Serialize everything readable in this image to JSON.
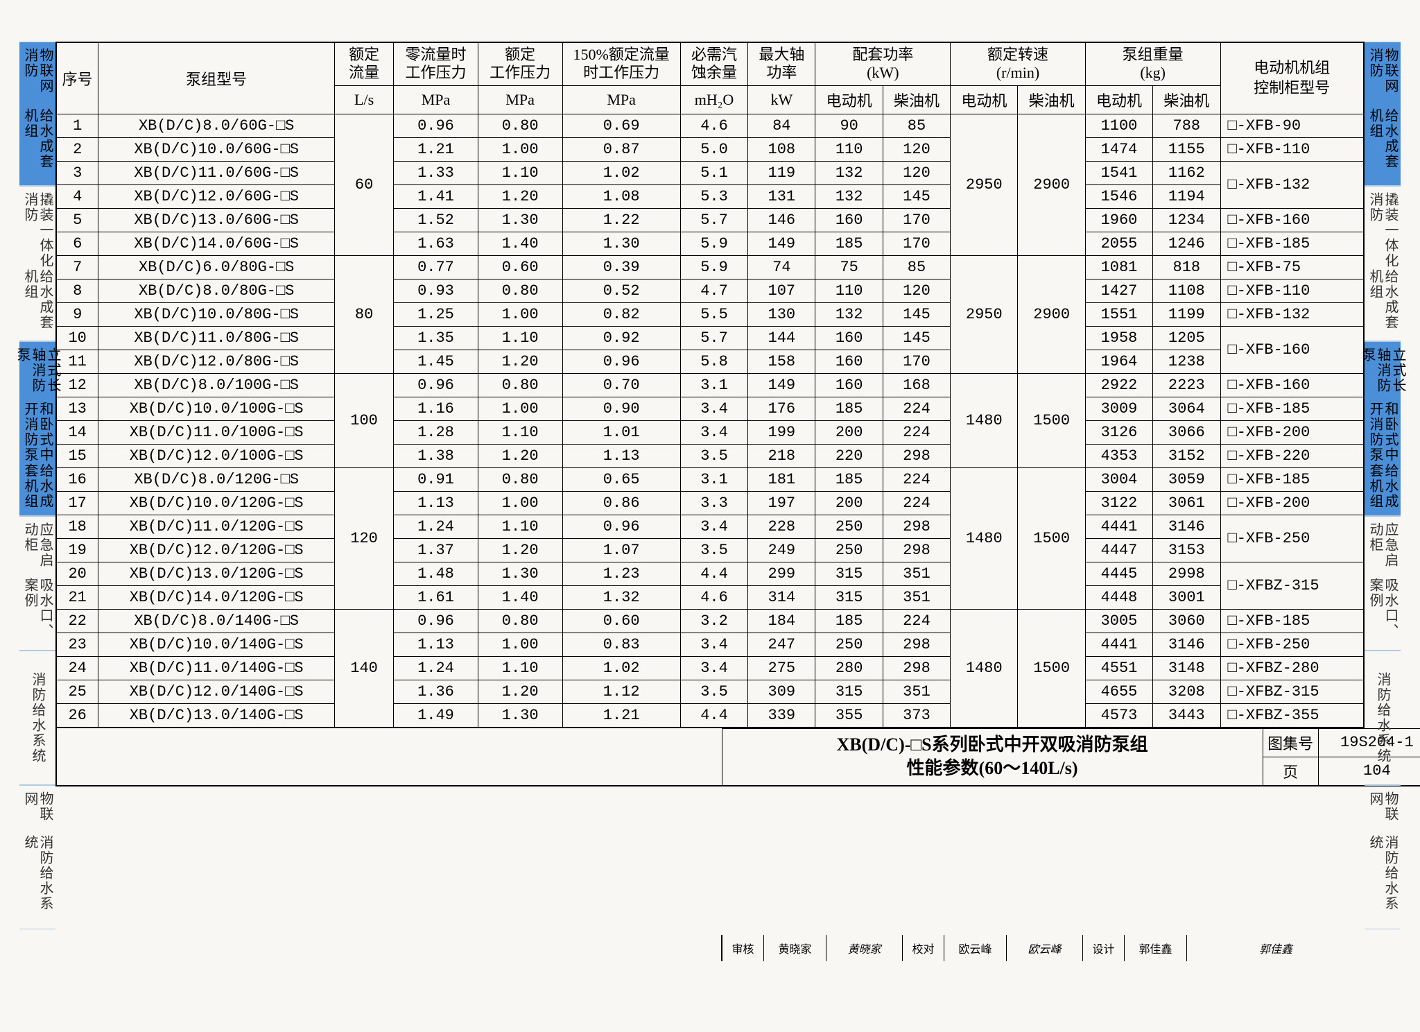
{
  "tabs": {
    "left": [
      {
        "text": "物联网消防\n给水成套机组",
        "blue": true,
        "flex": 1.3
      },
      {
        "text": "撬装一体化消防\n给水成套机组",
        "blue": false,
        "flex": 1.4
      },
      {
        "text": "立式长轴消防泵\n和卧式中开消防泵\n给水成套机组",
        "blue": true,
        "flex": 1.6
      },
      {
        "text": "应急启动柜\n吸水口、案例",
        "blue": false,
        "flex": 1.2
      },
      {
        "text": "消防给水系统",
        "blue": false,
        "flex": 1.2
      },
      {
        "text": "物联网\n消防给水系统",
        "blue": false,
        "flex": 1.3
      }
    ]
  },
  "header": {
    "seq": "序号",
    "model": "泵组型号",
    "flow1": "额定\n流量",
    "flow2": "L/s",
    "p0_1": "零流量时\n工作压力",
    "p0_2": "MPa",
    "pr_1": "额定\n工作压力",
    "pr_2": "MPa",
    "p150_1": "150%额定流量\n时工作压力",
    "p150_2": "MPa",
    "npsh_1": "必需汽\n蚀余量",
    "npsh_2": "mH₂O",
    "maxp_1": "最大轴\n功率",
    "maxp_2": "kW",
    "kw": "配套功率\n(kW)",
    "rpm": "额定转速\n(r/min)",
    "wt": "泵组重量\n(kg)",
    "cab": "电动机机组\n控制柜型号",
    "elec": "电动机",
    "diesel": "柴油机"
  },
  "rows": [
    {
      "n": 1,
      "model": "XB(D/C)8.0/60G-□S",
      "p0": "0.96",
      "pr": "0.80",
      "p150": "0.69",
      "npsh": "4.6",
      "maxp": "84",
      "kwE": "90",
      "kwD": "85",
      "wE": "1100",
      "wD": "788",
      "cab": "□-XFB-90"
    },
    {
      "n": 2,
      "model": "XB(D/C)10.0/60G-□S",
      "p0": "1.21",
      "pr": "1.00",
      "p150": "0.87",
      "npsh": "5.0",
      "maxp": "108",
      "kwE": "110",
      "kwD": "120",
      "wE": "1474",
      "wD": "1155",
      "cab": "□-XFB-110"
    },
    {
      "n": 3,
      "model": "XB(D/C)11.0/60G-□S",
      "p0": "1.33",
      "pr": "1.10",
      "p150": "1.02",
      "npsh": "5.1",
      "maxp": "119",
      "kwE": "132",
      "kwD": "120",
      "wE": "1541",
      "wD": "1162",
      "cab": "□-XFB-132"
    },
    {
      "n": 4,
      "model": "XB(D/C)12.0/60G-□S",
      "p0": "1.41",
      "pr": "1.20",
      "p150": "1.08",
      "npsh": "5.3",
      "maxp": "131",
      "kwE": "132",
      "kwD": "145",
      "wE": "1546",
      "wD": "1194",
      "cab": ""
    },
    {
      "n": 5,
      "model": "XB(D/C)13.0/60G-□S",
      "p0": "1.52",
      "pr": "1.30",
      "p150": "1.22",
      "npsh": "5.7",
      "maxp": "146",
      "kwE": "160",
      "kwD": "170",
      "wE": "1960",
      "wD": "1234",
      "cab": "□-XFB-160"
    },
    {
      "n": 6,
      "model": "XB(D/C)14.0/60G-□S",
      "p0": "1.63",
      "pr": "1.40",
      "p150": "1.30",
      "npsh": "5.9",
      "maxp": "149",
      "kwE": "185",
      "kwD": "170",
      "wE": "2055",
      "wD": "1246",
      "cab": "□-XFB-185"
    },
    {
      "n": 7,
      "model": "XB(D/C)6.0/80G-□S",
      "p0": "0.77",
      "pr": "0.60",
      "p150": "0.39",
      "npsh": "5.9",
      "maxp": "74",
      "kwE": "75",
      "kwD": "85",
      "wE": "1081",
      "wD": "818",
      "cab": "□-XFB-75"
    },
    {
      "n": 8,
      "model": "XB(D/C)8.0/80G-□S",
      "p0": "0.93",
      "pr": "0.80",
      "p150": "0.52",
      "npsh": "4.7",
      "maxp": "107",
      "kwE": "110",
      "kwD": "120",
      "wE": "1427",
      "wD": "1108",
      "cab": "□-XFB-110"
    },
    {
      "n": 9,
      "model": "XB(D/C)10.0/80G-□S",
      "p0": "1.25",
      "pr": "1.00",
      "p150": "0.82",
      "npsh": "5.5",
      "maxp": "130",
      "kwE": "132",
      "kwD": "145",
      "wE": "1551",
      "wD": "1199",
      "cab": "□-XFB-132"
    },
    {
      "n": 10,
      "model": "XB(D/C)11.0/80G-□S",
      "p0": "1.35",
      "pr": "1.10",
      "p150": "0.92",
      "npsh": "5.7",
      "maxp": "144",
      "kwE": "160",
      "kwD": "145",
      "wE": "1958",
      "wD": "1205",
      "cab": "□-XFB-160"
    },
    {
      "n": 11,
      "model": "XB(D/C)12.0/80G-□S",
      "p0": "1.45",
      "pr": "1.20",
      "p150": "0.96",
      "npsh": "5.8",
      "maxp": "158",
      "kwE": "160",
      "kwD": "170",
      "wE": "1964",
      "wD": "1238",
      "cab": ""
    },
    {
      "n": 12,
      "model": "XB(D/C)8.0/100G-□S",
      "p0": "0.96",
      "pr": "0.80",
      "p150": "0.70",
      "npsh": "3.1",
      "maxp": "149",
      "kwE": "160",
      "kwD": "168",
      "wE": "2922",
      "wD": "2223",
      "cab": "□-XFB-160"
    },
    {
      "n": 13,
      "model": "XB(D/C)10.0/100G-□S",
      "p0": "1.16",
      "pr": "1.00",
      "p150": "0.90",
      "npsh": "3.4",
      "maxp": "176",
      "kwE": "185",
      "kwD": "224",
      "wE": "3009",
      "wD": "3064",
      "cab": "□-XFB-185"
    },
    {
      "n": 14,
      "model": "XB(D/C)11.0/100G-□S",
      "p0": "1.28",
      "pr": "1.10",
      "p150": "1.01",
      "npsh": "3.4",
      "maxp": "199",
      "kwE": "200",
      "kwD": "224",
      "wE": "3126",
      "wD": "3066",
      "cab": "□-XFB-200"
    },
    {
      "n": 15,
      "model": "XB(D/C)12.0/100G-□S",
      "p0": "1.38",
      "pr": "1.20",
      "p150": "1.13",
      "npsh": "3.5",
      "maxp": "218",
      "kwE": "220",
      "kwD": "298",
      "wE": "4353",
      "wD": "3152",
      "cab": "□-XFB-220"
    },
    {
      "n": 16,
      "model": "XB(D/C)8.0/120G-□S",
      "p0": "0.91",
      "pr": "0.80",
      "p150": "0.65",
      "npsh": "3.1",
      "maxp": "181",
      "kwE": "185",
      "kwD": "224",
      "wE": "3004",
      "wD": "3059",
      "cab": "□-XFB-185"
    },
    {
      "n": 17,
      "model": "XB(D/C)10.0/120G-□S",
      "p0": "1.13",
      "pr": "1.00",
      "p150": "0.86",
      "npsh": "3.3",
      "maxp": "197",
      "kwE": "200",
      "kwD": "224",
      "wE": "3122",
      "wD": "3061",
      "cab": "□-XFB-200"
    },
    {
      "n": 18,
      "model": "XB(D/C)11.0/120G-□S",
      "p0": "1.24",
      "pr": "1.10",
      "p150": "0.96",
      "npsh": "3.4",
      "maxp": "228",
      "kwE": "250",
      "kwD": "298",
      "wE": "4441",
      "wD": "3146",
      "cab": "□-XFB-250"
    },
    {
      "n": 19,
      "model": "XB(D/C)12.0/120G-□S",
      "p0": "1.37",
      "pr": "1.20",
      "p150": "1.07",
      "npsh": "3.5",
      "maxp": "249",
      "kwE": "250",
      "kwD": "298",
      "wE": "4447",
      "wD": "3153",
      "cab": ""
    },
    {
      "n": 20,
      "model": "XB(D/C)13.0/120G-□S",
      "p0": "1.48",
      "pr": "1.30",
      "p150": "1.23",
      "npsh": "4.4",
      "maxp": "299",
      "kwE": "315",
      "kwD": "351",
      "wE": "4445",
      "wD": "2998",
      "cab": "□-XFBZ-315"
    },
    {
      "n": 21,
      "model": "XB(D/C)14.0/120G-□S",
      "p0": "1.61",
      "pr": "1.40",
      "p150": "1.32",
      "npsh": "4.6",
      "maxp": "314",
      "kwE": "315",
      "kwD": "351",
      "wE": "4448",
      "wD": "3001",
      "cab": ""
    },
    {
      "n": 22,
      "model": "XB(D/C)8.0/140G-□S",
      "p0": "0.96",
      "pr": "0.80",
      "p150": "0.60",
      "npsh": "3.2",
      "maxp": "184",
      "kwE": "185",
      "kwD": "224",
      "wE": "3005",
      "wD": "3060",
      "cab": "□-XFB-185"
    },
    {
      "n": 23,
      "model": "XB(D/C)10.0/140G-□S",
      "p0": "1.13",
      "pr": "1.00",
      "p150": "0.83",
      "npsh": "3.4",
      "maxp": "247",
      "kwE": "250",
      "kwD": "298",
      "wE": "4441",
      "wD": "3146",
      "cab": "□-XFB-250"
    },
    {
      "n": 24,
      "model": "XB(D/C)11.0/140G-□S",
      "p0": "1.24",
      "pr": "1.10",
      "p150": "1.02",
      "npsh": "3.4",
      "maxp": "275",
      "kwE": "280",
      "kwD": "298",
      "wE": "4551",
      "wD": "3148",
      "cab": "□-XFBZ-280"
    },
    {
      "n": 25,
      "model": "XB(D/C)12.0/140G-□S",
      "p0": "1.36",
      "pr": "1.20",
      "p150": "1.12",
      "npsh": "3.5",
      "maxp": "309",
      "kwE": "315",
      "kwD": "351",
      "wE": "4655",
      "wD": "3208",
      "cab": "□-XFBZ-315"
    },
    {
      "n": 26,
      "model": "XB(D/C)13.0/140G-□S",
      "p0": "1.49",
      "pr": "1.30",
      "p150": "1.21",
      "npsh": "4.4",
      "maxp": "339",
      "kwE": "355",
      "kwD": "373",
      "wE": "4573",
      "wD": "3443",
      "cab": "□-XFBZ-355"
    }
  ],
  "flow_groups": [
    {
      "start": 0,
      "span": 6,
      "val": "60",
      "rpmE": "2950",
      "rpmD": "2900"
    },
    {
      "start": 6,
      "span": 5,
      "val": "80",
      "rpmE": "2950",
      "rpmD": "2900"
    },
    {
      "start": 11,
      "span": 4,
      "val": "100",
      "rpmE": "1480",
      "rpmD": "1500"
    },
    {
      "start": 15,
      "span": 6,
      "val": "120",
      "rpmE": "1480",
      "rpmD": "1500"
    },
    {
      "start": 21,
      "span": 5,
      "val": "140",
      "rpmE": "1480",
      "rpmD": "1500"
    }
  ],
  "cab_merges": [
    [
      2,
      2
    ],
    [
      9,
      2
    ],
    [
      17,
      2
    ],
    [
      19,
      2
    ]
  ],
  "footer": {
    "title1": "XB(D/C)-□S系列卧式中开双吸消防泵组",
    "title2": "性能参数(60～140L/s)",
    "atlas_lbl": "图集号",
    "atlas": "19S204-1",
    "page_lbl": "页",
    "page": "104",
    "rev_lbl": "审核",
    "rev_name": "黄晓家",
    "chk_lbl": "校对",
    "chk_name": "欧云峰",
    "des_lbl": "设计",
    "des_name": "郭佳鑫"
  },
  "colors": {
    "tab_blue": "#4a8fd8",
    "bg": "#f9f7f4"
  }
}
